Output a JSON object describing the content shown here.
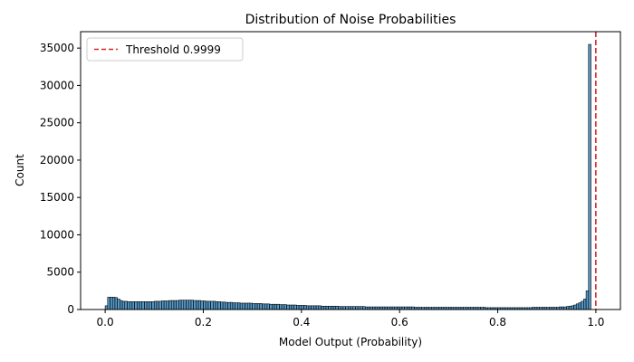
{
  "chart_data": {
    "type": "bar",
    "title": "Distribution of Noise Probabilities",
    "xlabel": "Model Output (Probability)",
    "ylabel": "Count",
    "xlim": [
      -0.05,
      1.05
    ],
    "ylim": [
      0,
      37200
    ],
    "xticks": [
      0.0,
      0.2,
      0.4,
      0.6,
      0.8,
      1.0
    ],
    "xtick_labels": [
      "0.0",
      "0.2",
      "0.4",
      "0.6",
      "0.8",
      "1.0"
    ],
    "yticks": [
      0,
      5000,
      10000,
      15000,
      20000,
      25000,
      30000,
      35000
    ],
    "ytick_labels": [
      "0",
      "5000",
      "10000",
      "15000",
      "20000",
      "25000",
      "30000",
      "35000"
    ],
    "grid": false,
    "bar_color": "#1f77b4",
    "bar_edge_color": "#000000",
    "bin_width": 0.005,
    "bin_start": 0.0,
    "threshold": {
      "x": 0.9999,
      "label": "Threshold 0.9999",
      "color": "#d62728",
      "style": "dashed"
    },
    "legend": {
      "position": "upper-left",
      "entries": [
        "Threshold 0.9999"
      ]
    },
    "counts": [
      500,
      1650,
      1650,
      1650,
      1600,
      1400,
      1200,
      1100,
      1100,
      1050,
      1050,
      1050,
      1050,
      1050,
      1050,
      1050,
      1050,
      1050,
      1050,
      1050,
      1100,
      1100,
      1100,
      1150,
      1150,
      1150,
      1200,
      1200,
      1200,
      1200,
      1250,
      1250,
      1250,
      1250,
      1250,
      1250,
      1200,
      1200,
      1200,
      1150,
      1150,
      1100,
      1100,
      1100,
      1100,
      1050,
      1050,
      1000,
      1000,
      950,
      950,
      950,
      900,
      900,
      900,
      850,
      850,
      850,
      850,
      850,
      800,
      800,
      800,
      800,
      750,
      750,
      750,
      700,
      700,
      700,
      700,
      650,
      650,
      650,
      600,
      600,
      600,
      600,
      550,
      550,
      550,
      550,
      500,
      500,
      500,
      500,
      500,
      500,
      450,
      450,
      450,
      450,
      450,
      450,
      450,
      400,
      400,
      400,
      400,
      400,
      400,
      400,
      400,
      400,
      400,
      400,
      350,
      350,
      350,
      350,
      350,
      350,
      350,
      350,
      350,
      350,
      350,
      350,
      350,
      350,
      350,
      350,
      350,
      350,
      350,
      350,
      300,
      300,
      300,
      300,
      300,
      300,
      300,
      300,
      300,
      300,
      300,
      300,
      300,
      300,
      300,
      300,
      300,
      300,
      300,
      300,
      300,
      300,
      300,
      300,
      300,
      300,
      300,
      300,
      300,
      250,
      250,
      250,
      250,
      250,
      250,
      250,
      250,
      250,
      250,
      250,
      250,
      250,
      250,
      250,
      250,
      250,
      250,
      250,
      300,
      300,
      300,
      300,
      300,
      300,
      300,
      300,
      300,
      300,
      300,
      350,
      350,
      350,
      400,
      450,
      500,
      600,
      750,
      900,
      1100,
      1400,
      2500,
      35500
    ]
  }
}
